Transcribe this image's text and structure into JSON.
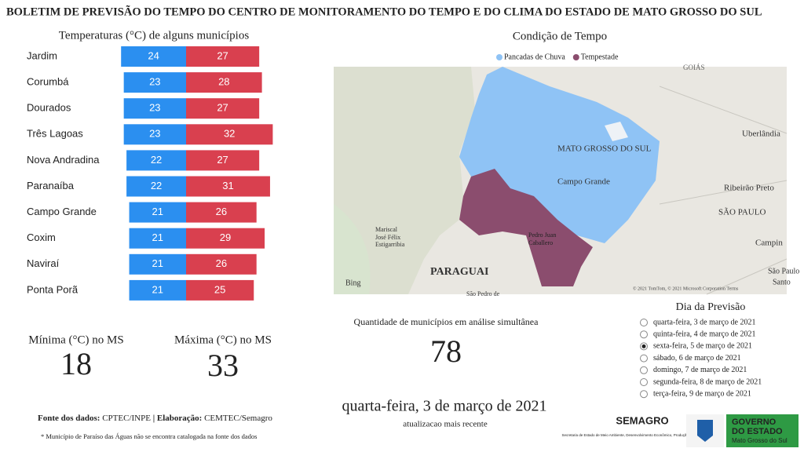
{
  "header": {
    "title": "BOLETIM DE PREVISÃO DO TEMPO DO CENTRO DE MONITORAMENTO DO TEMPO E DO CLIMA DO ESTADO DE MATO GROSSO DO SUL"
  },
  "chart_data": {
    "type": "bar",
    "title": "Temperaturas (°C) de alguns municípios",
    "categories": [
      "Jardim",
      "Corumbá",
      "Dourados",
      "Três Lagoas",
      "Nova Andradina",
      "Paranaíba",
      "Campo Grande",
      "Coxim",
      "Naviraí",
      "Ponta Porã"
    ],
    "series": [
      {
        "name": "Mínima",
        "color": "#2b8ff0",
        "values": [
          24,
          23,
          23,
          23,
          22,
          22,
          21,
          21,
          21,
          21
        ]
      },
      {
        "name": "Máxima",
        "color": "#d9404f",
        "values": [
          27,
          28,
          27,
          32,
          27,
          31,
          26,
          29,
          26,
          25
        ]
      }
    ]
  },
  "summary": {
    "min_label": "Mínima (°C) no MS",
    "min_value": 18,
    "max_label": "Máxima (°C) no MS",
    "max_value": 33
  },
  "footer": {
    "source_label": "Fonte dos dados:",
    "source": "CPTEC/INPE",
    "sep": "|",
    "credit_label": "Elaboração:",
    "credit": "CEMTEC/Semagro",
    "note": "* Município de Paraíso das Águas não se encontra catalogada na fonte dos dados"
  },
  "map": {
    "title": "Condição de Tempo",
    "legend": [
      {
        "name": "Pancadas de Chuva",
        "color": "#8fc3f5"
      },
      {
        "name": "Tempestade",
        "color": "#8b4d6e"
      }
    ],
    "labels": [
      "GOIÁS",
      "MATO GROSSO DO SUL",
      "Uberlândia",
      "Campo Grande",
      "Ribeirão Preto",
      "SÃO PAULO",
      "Campin",
      "Mariscal",
      "José Félix",
      "Estigarribia",
      "Pedro Juan",
      "Caballero",
      "PARAGUAI",
      "São Paulo",
      "Santo",
      "São Pedro de",
      "Bing",
      "© 2021 TomTom, © 2021 Microsoft Corporation  Terms"
    ]
  },
  "count": {
    "label": "Quantidade de municípios em análise simultânea",
    "value": 78
  },
  "date": {
    "value": "quarta-feira, 3 de março de 2021",
    "caption": "atualizacao mais recente"
  },
  "forecast": {
    "title": "Dia da Previsão",
    "selected": 2,
    "options": [
      "quarta-feira, 3 de março de 2021",
      "quinta-feira, 4 de março de 2021",
      "sexta-feira, 5 de março de 2021",
      "sábado, 6 de março de 2021",
      "domingo, 7 de março de 2021",
      "segunda-feira, 8 de março de 2021",
      "terça-feira, 9 de março de 2021"
    ]
  },
  "logos": {
    "semagro": "SEMAGRO",
    "semagro_sub": "Secretaria de Estado de Meio Ambiente, Desenvolvimento Econômico, Produção e Agricultura Familiar",
    "gov1": "GOVERNO",
    "gov2": "DO ESTADO",
    "gov3": "Mato Grosso do Sul"
  }
}
